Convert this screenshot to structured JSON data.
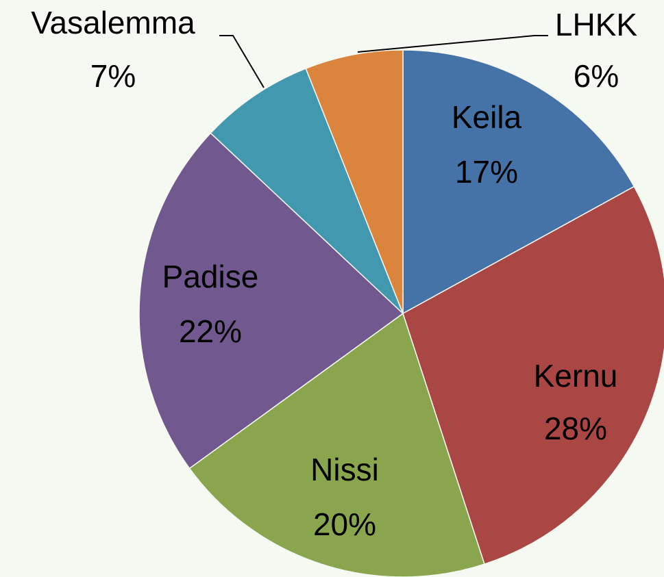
{
  "chart_data": {
    "type": "pie",
    "categories": [
      "Keila",
      "Kernu",
      "Nissi",
      "Padise",
      "Vasalemma",
      "LHKK"
    ],
    "values": [
      17,
      28,
      20,
      22,
      7,
      6
    ],
    "value_labels": [
      "17%",
      "28%",
      "20%",
      "22%",
      "7%",
      "6%"
    ],
    "colors": [
      "#4572a7",
      "#aa4643",
      "#89a54e",
      "#71588f",
      "#4198af",
      "#db843d"
    ]
  }
}
